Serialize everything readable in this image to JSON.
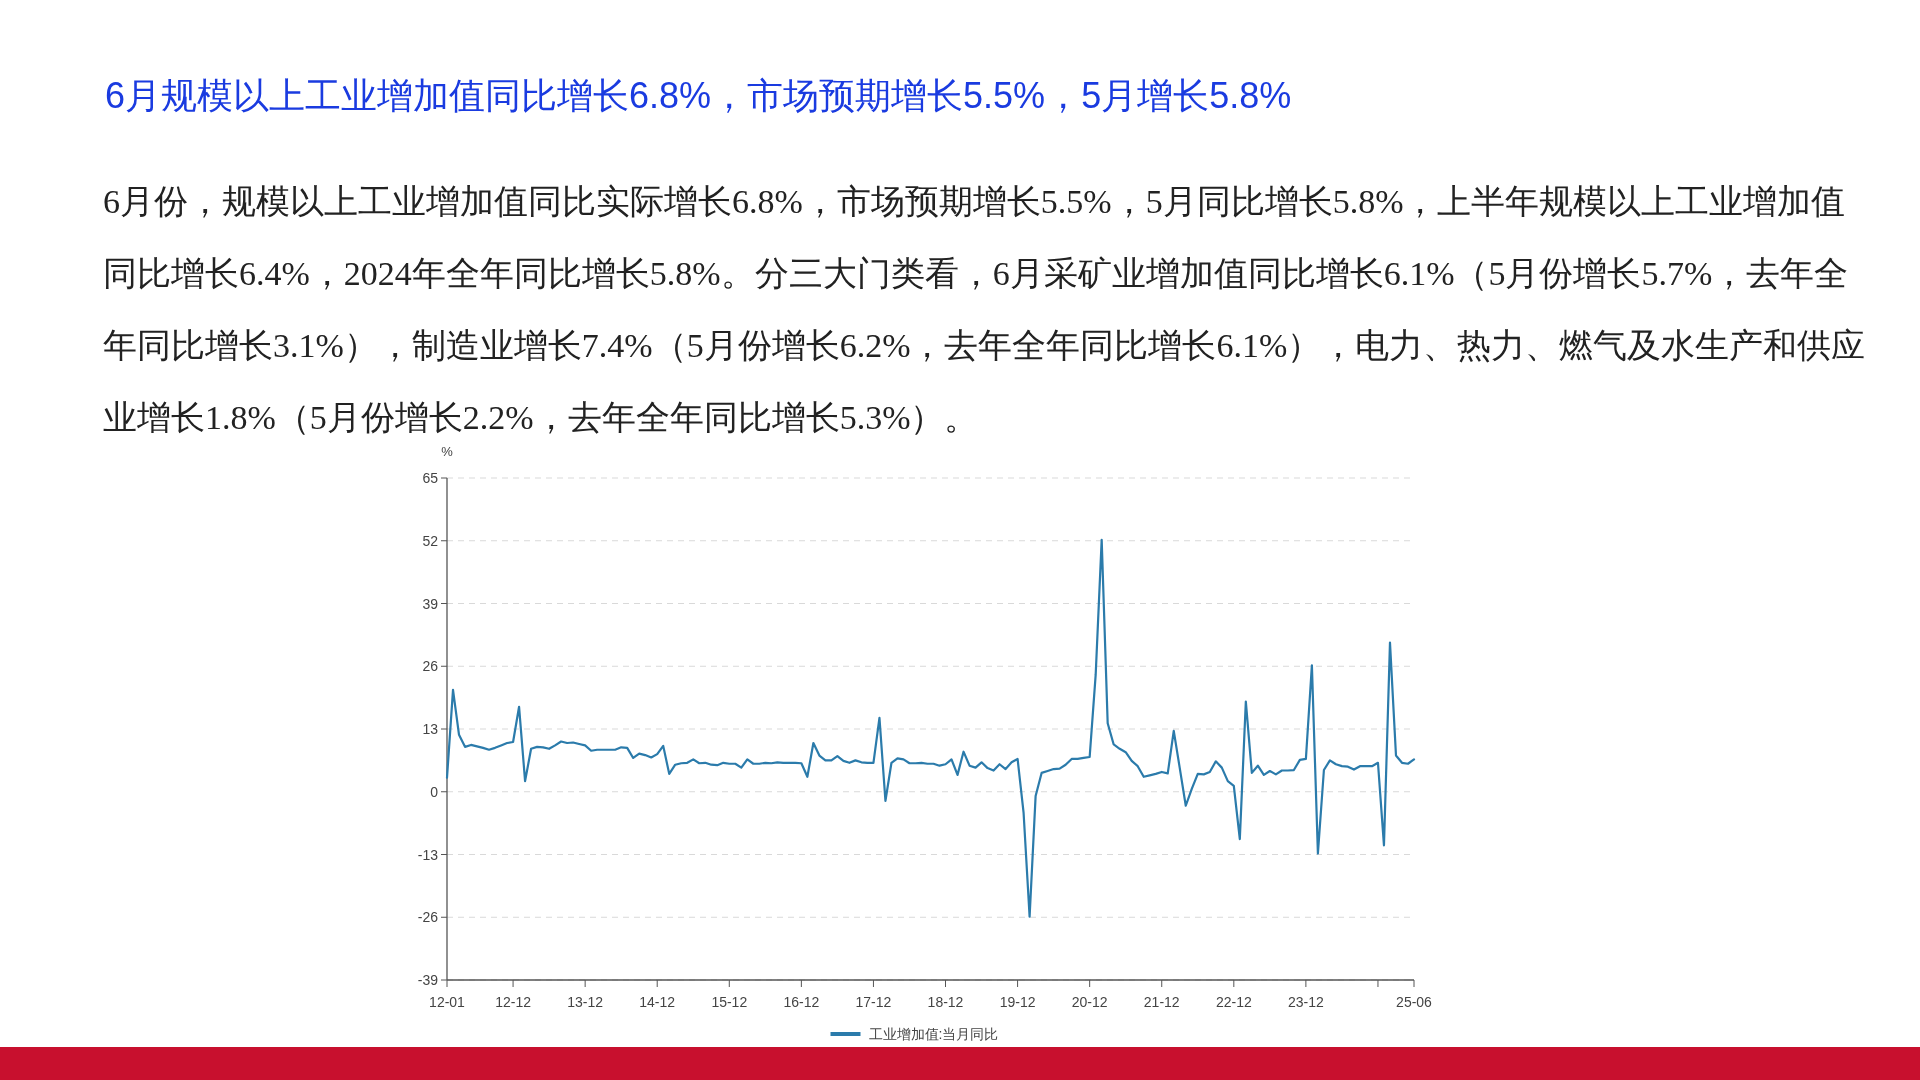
{
  "chart_data": {
    "type": "line",
    "title": "6月规模以上工业增加值同比增长6.8%，市场预期增长5.5%，5月增长5.8%",
    "ylabel": "%",
    "annotations": [
      "6月份，规模以上工业增加值同比实际增长6.8%，市场预期增长5.5%，5月同比增长5.8%，上半年规模以上工业增加值同比增长6.4%，2024年全年同比增长5.8%。分三大门类看，6月采矿业增加值同比增长6.1%（5月份增长5.7%，去年全年同比增长3.1%），制造业增长7.4%（5月份增长6.2%，去年全年同比增长6.1%），电力、热力、燃气及水生产和供应业增长1.8%（5月份增长2.2%，去年全年同比增长5.3%）。"
    ],
    "x": [
      "2012-01",
      "2012-02",
      "2012-03",
      "2012-04",
      "2012-05",
      "2012-06",
      "2012-07",
      "2012-08",
      "2012-09",
      "2012-10",
      "2012-11",
      "2012-12",
      "2013-01",
      "2013-02",
      "2013-03",
      "2013-04",
      "2013-05",
      "2013-06",
      "2013-07",
      "2013-08",
      "2013-09",
      "2013-10",
      "2013-11",
      "2013-12",
      "2014-01",
      "2014-02",
      "2014-03",
      "2014-04",
      "2014-05",
      "2014-06",
      "2014-07",
      "2014-08",
      "2014-09",
      "2014-10",
      "2014-11",
      "2014-12",
      "2015-01",
      "2015-02",
      "2015-03",
      "2015-04",
      "2015-05",
      "2015-06",
      "2015-07",
      "2015-08",
      "2015-09",
      "2015-10",
      "2015-11",
      "2015-12",
      "2016-01",
      "2016-02",
      "2016-03",
      "2016-04",
      "2016-05",
      "2016-06",
      "2016-07",
      "2016-08",
      "2016-09",
      "2016-10",
      "2016-11",
      "2016-12",
      "2017-01",
      "2017-02",
      "2017-03",
      "2017-04",
      "2017-05",
      "2017-06",
      "2017-07",
      "2017-08",
      "2017-09",
      "2017-10",
      "2017-11",
      "2017-12",
      "2018-01",
      "2018-02",
      "2018-03",
      "2018-04",
      "2018-05",
      "2018-06",
      "2018-07",
      "2018-08",
      "2018-09",
      "2018-10",
      "2018-11",
      "2018-12",
      "2019-01",
      "2019-02",
      "2019-03",
      "2019-04",
      "2019-05",
      "2019-06",
      "2019-07",
      "2019-08",
      "2019-09",
      "2019-10",
      "2019-11",
      "2019-12",
      "2020-01",
      "2020-02",
      "2020-03",
      "2020-04",
      "2020-05",
      "2020-06",
      "2020-07",
      "2020-08",
      "2020-09",
      "2020-10",
      "2020-11",
      "2020-12",
      "2021-01",
      "2021-02",
      "2021-03",
      "2021-04",
      "2021-05",
      "2021-06",
      "2021-07",
      "2021-08",
      "2021-09",
      "2021-10",
      "2021-11",
      "2021-12",
      "2022-01",
      "2022-02",
      "2022-03",
      "2022-04",
      "2022-05",
      "2022-06",
      "2022-07",
      "2022-08",
      "2022-09",
      "2022-10",
      "2022-11",
      "2022-12",
      "2023-01",
      "2023-02",
      "2023-03",
      "2023-04",
      "2023-05",
      "2023-06",
      "2023-07",
      "2023-08",
      "2023-09",
      "2023-10",
      "2023-11",
      "2023-12",
      "2024-01",
      "2024-02",
      "2024-03",
      "2024-04",
      "2024-05",
      "2024-06",
      "2024-07",
      "2024-08",
      "2024-09",
      "2024-10",
      "2024-11",
      "2024-12",
      "2025-01",
      "2025-02",
      "2025-03",
      "2025-04",
      "2025-05",
      "2025-06"
    ],
    "series": [
      {
        "name": "工业增加值:当月同比",
        "color": "#2b7bab",
        "values": [
          2.9,
          21.1,
          11.8,
          9.3,
          9.7,
          9.4,
          9.1,
          8.7,
          9.1,
          9.6,
          10.1,
          10.3,
          17.6,
          2.2,
          8.9,
          9.3,
          9.2,
          8.9,
          9.6,
          10.4,
          10.1,
          10.2,
          9.9,
          9.6,
          8.5,
          8.7,
          8.7,
          8.7,
          8.7,
          9.2,
          9.1,
          7.0,
          7.9,
          7.6,
          7.1,
          7.8,
          9.5,
          3.7,
          5.6,
          5.9,
          6.0,
          6.7,
          5.9,
          6.0,
          5.6,
          5.5,
          6.0,
          5.8,
          5.8,
          5.0,
          6.7,
          5.8,
          5.8,
          6.0,
          5.9,
          6.1,
          6.0,
          6.0,
          6.0,
          5.9,
          3.1,
          10.1,
          7.5,
          6.5,
          6.5,
          7.4,
          6.4,
          6.0,
          6.5,
          6.1,
          6.0,
          6.0,
          15.3,
          -1.9,
          6.0,
          6.9,
          6.7,
          5.9,
          5.9,
          6.0,
          5.8,
          5.8,
          5.4,
          5.7,
          6.7,
          3.5,
          8.3,
          5.4,
          5.0,
          6.1,
          4.9,
          4.4,
          5.7,
          4.7,
          6.1,
          6.8,
          -4.4,
          -25.9,
          -0.9,
          3.9,
          4.3,
          4.7,
          4.8,
          5.6,
          6.8,
          6.8,
          7.0,
          7.2,
          24.2,
          52.2,
          14.2,
          9.8,
          8.9,
          8.2,
          6.4,
          5.3,
          3.1,
          3.4,
          3.7,
          4.1,
          3.8,
          12.6,
          4.9,
          -2.9,
          0.6,
          3.7,
          3.6,
          4.1,
          6.3,
          5.0,
          2.2,
          1.2,
          -9.8,
          18.7,
          3.9,
          5.4,
          3.5,
          4.3,
          3.6,
          4.4,
          4.4,
          4.5,
          6.6,
          6.8,
          26.2,
          -12.8,
          4.5,
          6.5,
          5.7,
          5.3,
          5.2,
          4.6,
          5.3,
          5.3,
          5.3,
          6.0,
          -11.1,
          30.9,
          7.5,
          6.0,
          5.8,
          6.7
        ]
      }
    ],
    "xlim": [
      "2012-01",
      "2025-06"
    ],
    "xticks": [
      {
        "value": "2012-01",
        "label": "12-01"
      },
      {
        "value": "2012-12",
        "label": "12-12"
      },
      {
        "value": "2013-12",
        "label": "13-12"
      },
      {
        "value": "2014-12",
        "label": "14-12"
      },
      {
        "value": "2015-12",
        "label": "15-12"
      },
      {
        "value": "2016-12",
        "label": "16-12"
      },
      {
        "value": "2017-12",
        "label": "17-12"
      },
      {
        "value": "2018-12",
        "label": "18-12"
      },
      {
        "value": "2019-12",
        "label": "19-12"
      },
      {
        "value": "2020-12",
        "label": "20-12"
      },
      {
        "value": "2021-12",
        "label": "21-12"
      },
      {
        "value": "2022-12",
        "label": "22-12"
      },
      {
        "value": "2023-12",
        "label": "23-12"
      },
      {
        "value": "2024-12",
        "label": null
      },
      {
        "value": "2025-06",
        "label": "25-06"
      }
    ],
    "ylim": [
      -39,
      65
    ],
    "yticks": [
      -39,
      -26,
      -13,
      0,
      13,
      26,
      39,
      52,
      65
    ],
    "grid": "y",
    "legend": "bottom",
    "marker": "none",
    "line_style": "solid"
  }
}
